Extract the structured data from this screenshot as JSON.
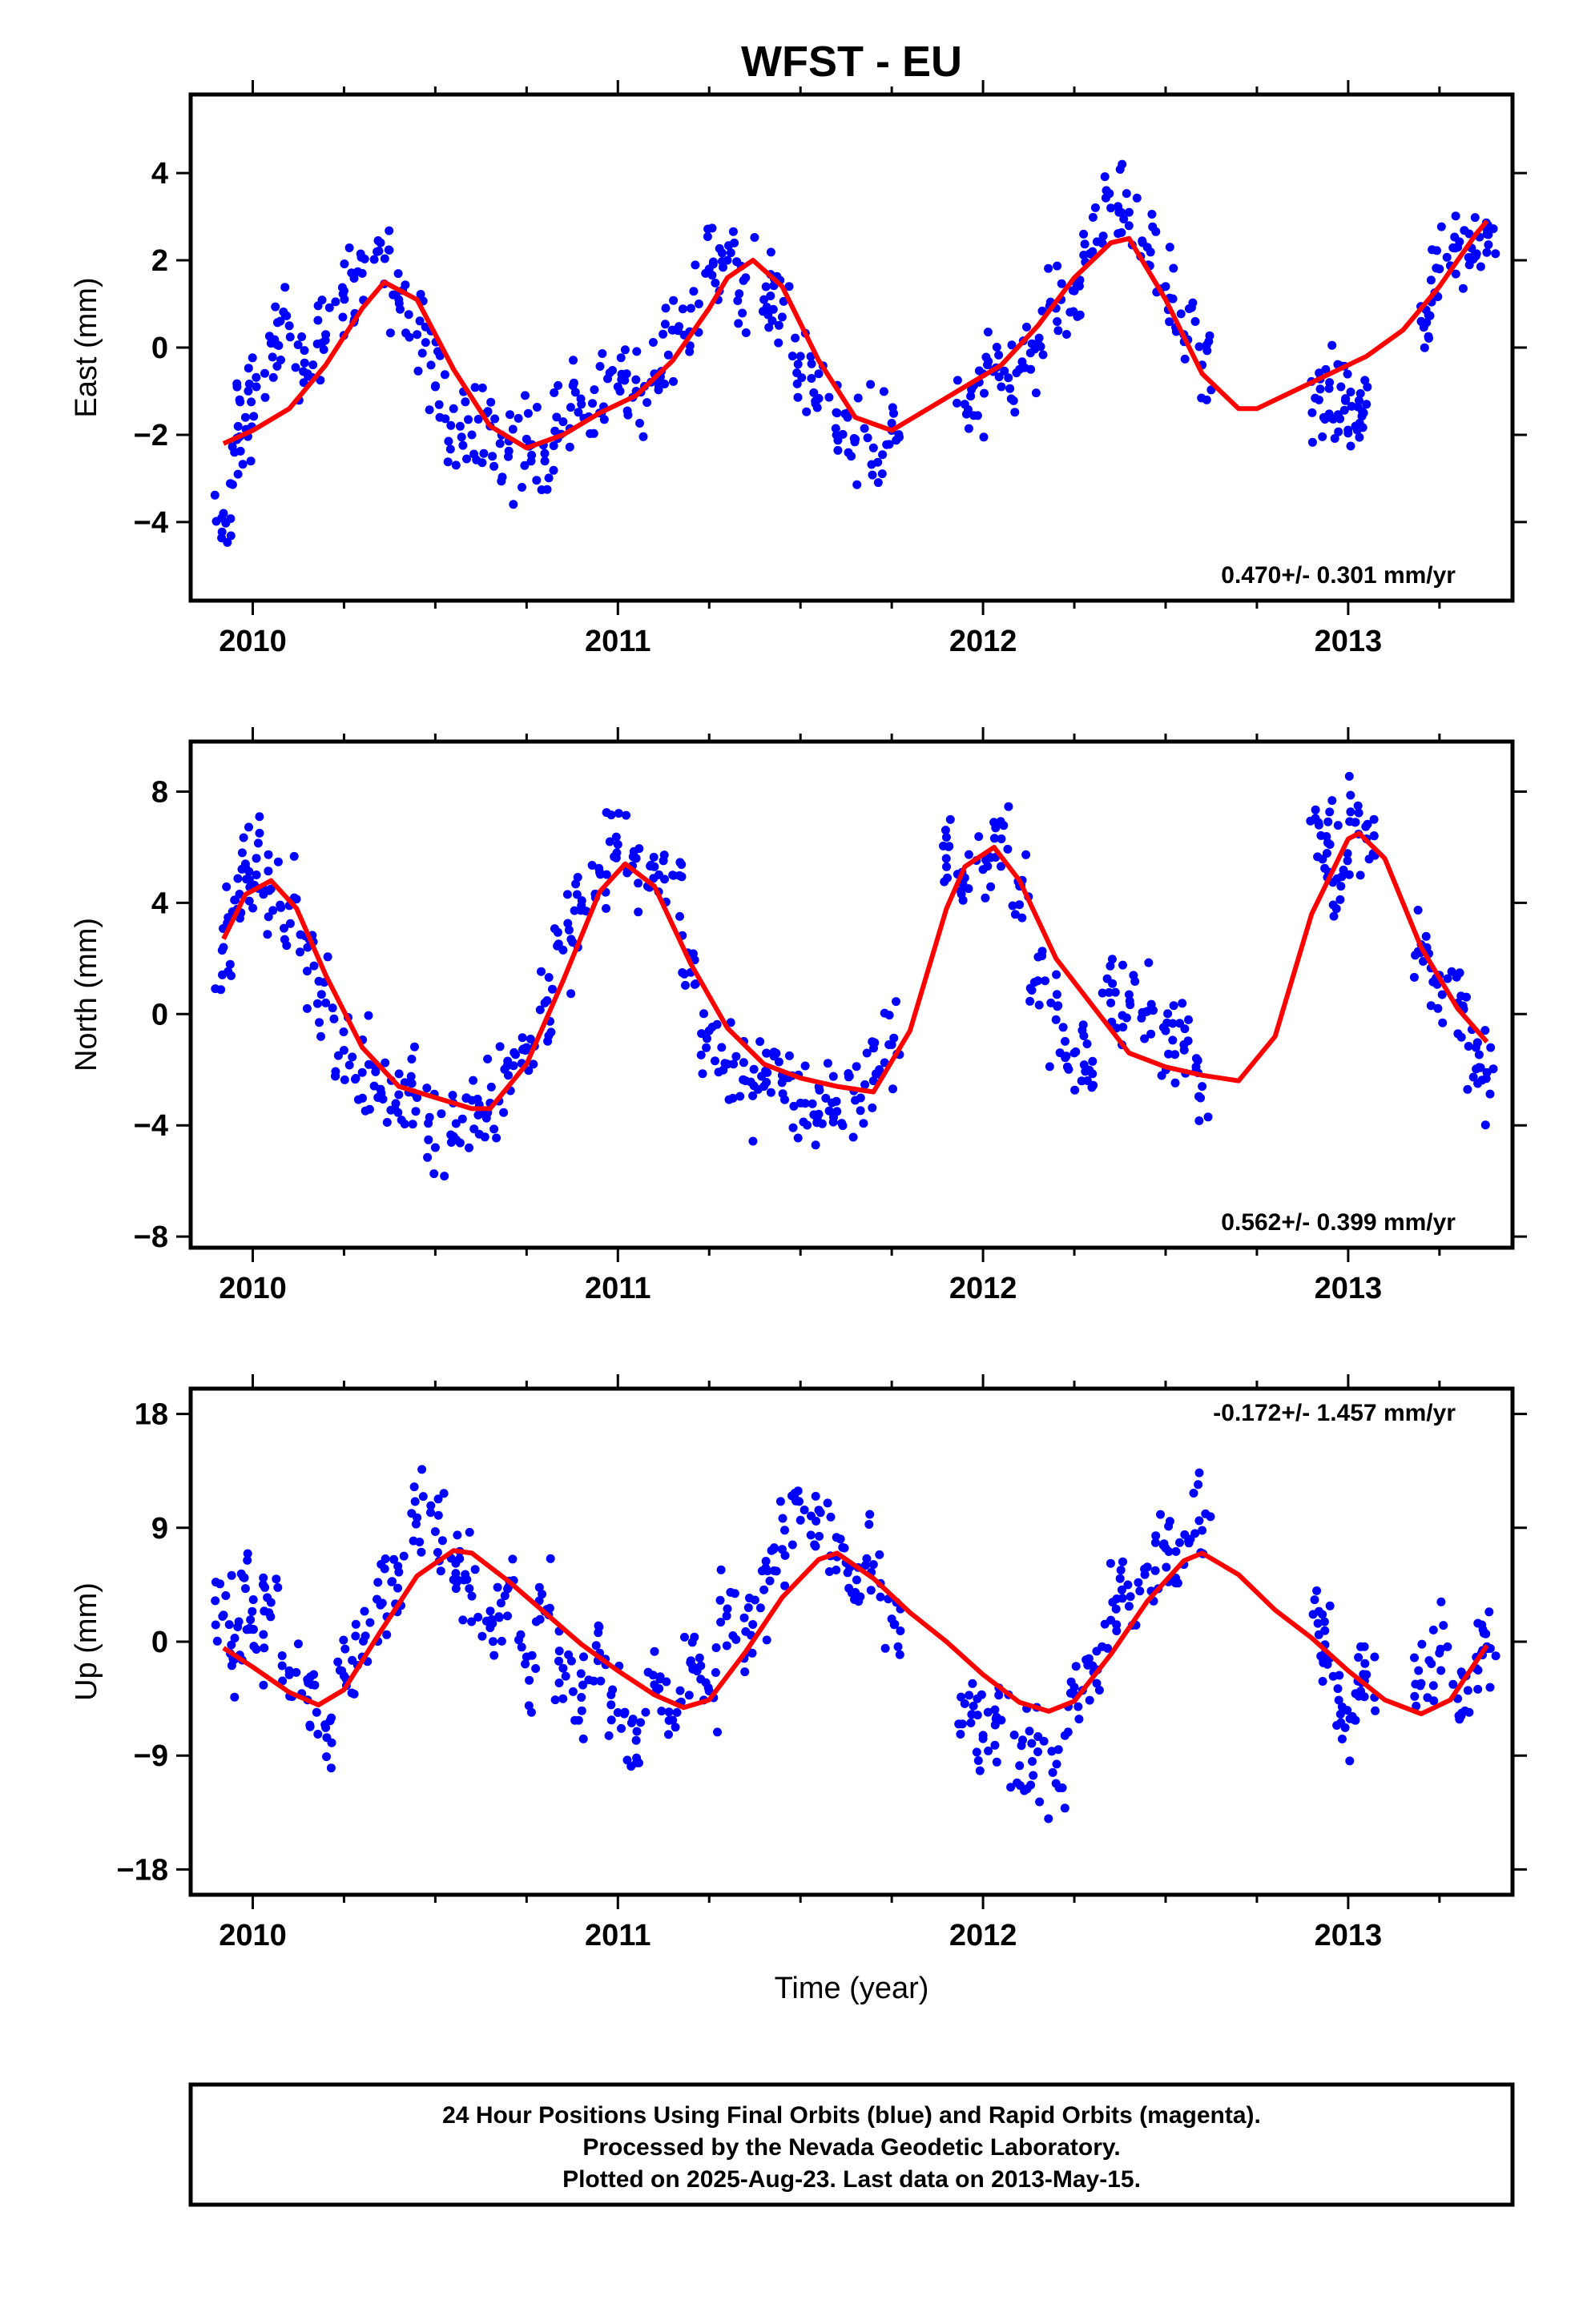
{
  "figure": {
    "title": "WFST - EU",
    "xlabel": "Time (year)",
    "footer": [
      "24 Hour Positions Using Final Orbits (blue) and Rapid Orbits (magenta).",
      "Processed by the Nevada Geodetic Laboratory.",
      "Plotted on 2025-Aug-23. Last data on 2013-May-15."
    ],
    "colors": {
      "points": "#0000ff",
      "model": "#ff0000",
      "frame": "#000000"
    }
  },
  "chart_data": [
    {
      "type": "scatter",
      "ylabel": "East (mm)",
      "rate_label": "0.470+/- 0.301 mm/yr",
      "xlim": [
        2009.83,
        2013.45
      ],
      "ylim": [
        -5.8,
        5.8
      ],
      "xticks": [
        2010,
        2011,
        2012,
        2013
      ],
      "yticks": [
        -4,
        -2,
        0,
        2,
        4
      ],
      "yticklabels": [
        "−4",
        "−2",
        "0",
        "2",
        "4"
      ],
      "series": [
        {
          "kind": "observations",
          "x": [
            2009.92,
            2009.95,
            2009.98,
            2010.01,
            2010.05,
            2010.1,
            2010.15,
            2010.2,
            2010.25,
            2010.3,
            2010.35,
            2010.4,
            2010.45,
            2010.5,
            2010.55,
            2010.6,
            2010.65,
            2010.7,
            2010.75,
            2010.8,
            2010.85,
            2010.9,
            2010.95,
            2011.0,
            2011.05,
            2011.1,
            2011.15,
            2011.2,
            2011.25,
            2011.3,
            2011.35,
            2011.4,
            2011.45,
            2011.5,
            2011.55,
            2011.6,
            2011.65,
            2011.7,
            2011.75,
            2011.95,
            2012.0,
            2012.05,
            2012.1,
            2012.15,
            2012.2,
            2012.25,
            2012.3,
            2012.35,
            2012.4,
            2012.45,
            2012.5,
            2012.55,
            2012.6,
            2012.92,
            2012.95,
            2012.98,
            2013.02,
            2013.05,
            2013.2,
            2013.25,
            2013.3,
            2013.35,
            2013.38
          ],
          "y": [
            -3.8,
            -2.4,
            -1.6,
            -0.9,
            0.1,
            0.5,
            -0.6,
            0.3,
            1.3,
            1.7,
            2.4,
            1.1,
            0.3,
            -0.9,
            -1.4,
            -2.0,
            -1.8,
            -2.5,
            -2.1,
            -2.6,
            -1.7,
            -1.3,
            -1.5,
            -0.9,
            -1.0,
            -0.6,
            0.4,
            0.9,
            1.8,
            2.0,
            1.6,
            1.1,
            0.7,
            -0.2,
            -0.6,
            -1.5,
            -2.1,
            -2.3,
            -1.9,
            -1.3,
            -0.6,
            -0.9,
            -0.5,
            0.1,
            0.9,
            1.3,
            2.2,
            3.2,
            3.1,
            2.3,
            1.4,
            0.3,
            -0.4,
            -1.2,
            -1.6,
            -0.9,
            -1.8,
            -1.3,
            0.6,
            1.8,
            2.3,
            2.1,
            2.6
          ]
        },
        {
          "kind": "model",
          "x": [
            2009.92,
            2010.0,
            2010.1,
            2010.2,
            2010.3,
            2010.36,
            2010.45,
            2010.55,
            2010.65,
            2010.75,
            2010.85,
            2010.95,
            2011.05,
            2011.15,
            2011.25,
            2011.3,
            2011.37,
            2011.45,
            2011.55,
            2011.65,
            2011.75,
            2011.85,
            2011.95,
            2012.05,
            2012.15,
            2012.25,
            2012.35,
            2012.4,
            2012.5,
            2012.6,
            2012.7,
            2012.75,
            2012.85,
            2012.95,
            2013.05,
            2013.15,
            2013.25,
            2013.35,
            2013.38
          ],
          "y": [
            -2.2,
            -1.9,
            -1.4,
            -0.4,
            0.9,
            1.5,
            1.1,
            -0.5,
            -1.8,
            -2.3,
            -2.0,
            -1.5,
            -1.1,
            -0.3,
            0.9,
            1.6,
            2.0,
            1.4,
            -0.3,
            -1.6,
            -1.9,
            -1.4,
            -0.9,
            -0.4,
            0.5,
            1.6,
            2.4,
            2.5,
            1.1,
            -0.6,
            -1.4,
            -1.4,
            -1.0,
            -0.6,
            -0.2,
            0.4,
            1.4,
            2.6,
            2.9
          ]
        }
      ]
    },
    {
      "type": "scatter",
      "ylabel": "North (mm)",
      "rate_label": "0.562+/- 0.399 mm/yr",
      "xlim": [
        2009.83,
        2013.45
      ],
      "ylim": [
        -8.4,
        9.8
      ],
      "xticks": [
        2010,
        2011,
        2012,
        2013
      ],
      "yticks": [
        -8,
        -4,
        0,
        4,
        8
      ],
      "yticklabels": [
        "−8",
        "−4",
        "0",
        "4",
        "8"
      ],
      "series": [
        {
          "kind": "observations",
          "x": [
            2009.92,
            2009.95,
            2009.98,
            2010.01,
            2010.05,
            2010.1,
            2010.15,
            2010.2,
            2010.25,
            2010.3,
            2010.35,
            2010.4,
            2010.45,
            2010.5,
            2010.55,
            2010.6,
            2010.65,
            2010.7,
            2010.75,
            2010.8,
            2010.85,
            2010.9,
            2010.95,
            2011.0,
            2011.05,
            2011.1,
            2011.15,
            2011.2,
            2011.25,
            2011.3,
            2011.35,
            2011.4,
            2011.45,
            2011.5,
            2011.55,
            2011.6,
            2011.65,
            2011.7,
            2011.75,
            2011.9,
            2011.95,
            2012.0,
            2012.05,
            2012.1,
            2012.15,
            2012.2,
            2012.25,
            2012.3,
            2012.35,
            2012.4,
            2012.45,
            2012.5,
            2012.55,
            2012.6,
            2012.92,
            2012.95,
            2012.98,
            2013.02,
            2013.05,
            2013.2,
            2013.25,
            2013.3,
            2013.35,
            2013.38
          ],
          "y": [
            2.4,
            4.1,
            5.4,
            5.6,
            4.5,
            3.9,
            2.4,
            0.4,
            -1.3,
            -2.1,
            -2.7,
            -2.9,
            -3.0,
            -4.8,
            -4.4,
            -3.1,
            -3.2,
            -2.2,
            -1.2,
            0.4,
            2.3,
            3.9,
            5.1,
            6.1,
            5.6,
            5.3,
            5.0,
            1.5,
            -0.6,
            -1.8,
            -2.4,
            -2.6,
            -2.2,
            -3.2,
            -3.6,
            -3.5,
            -3.1,
            -2.4,
            -1.1,
            5.3,
            4.9,
            5.2,
            6.3,
            4.6,
            1.2,
            -0.2,
            -1.4,
            -1.7,
            0.4,
            0.7,
            0.1,
            -0.6,
            -1.1,
            -2.6,
            6.8,
            6.1,
            4.6,
            6.9,
            6.3,
            2.5,
            1.4,
            0.4,
            -1.2,
            -2.1
          ]
        },
        {
          "kind": "model",
          "x": [
            2009.92,
            2009.98,
            2010.05,
            2010.12,
            2010.2,
            2010.3,
            2010.4,
            2010.5,
            2010.6,
            2010.65,
            2010.75,
            2010.85,
            2010.95,
            2011.02,
            2011.1,
            2011.2,
            2011.3,
            2011.4,
            2011.5,
            2011.6,
            2011.7,
            2011.8,
            2011.9,
            2011.95,
            2012.03,
            2012.1,
            2012.2,
            2012.3,
            2012.4,
            2012.5,
            2012.6,
            2012.7,
            2012.8,
            2012.9,
            2013.0,
            2013.03,
            2013.1,
            2013.2,
            2013.3,
            2013.38
          ],
          "y": [
            2.7,
            4.3,
            4.8,
            3.8,
            1.4,
            -1.2,
            -2.6,
            -3.0,
            -3.4,
            -3.4,
            -1.8,
            1.2,
            4.4,
            5.4,
            4.6,
            1.8,
            -0.5,
            -1.8,
            -2.3,
            -2.6,
            -2.8,
            -0.6,
            3.8,
            5.3,
            6.0,
            4.8,
            2.0,
            0.3,
            -1.4,
            -1.9,
            -2.2,
            -2.4,
            -0.8,
            3.6,
            6.3,
            6.5,
            5.6,
            2.4,
            0.2,
            -1.0
          ]
        }
      ]
    },
    {
      "type": "scatter",
      "ylabel": "Up (mm)",
      "rate_label": "-0.172+/- 1.457 mm/yr",
      "xlim": [
        2009.83,
        2013.45
      ],
      "ylim": [
        -20,
        20
      ],
      "xticks": [
        2010,
        2011,
        2012,
        2013
      ],
      "yticks": [
        -18,
        -9,
        0,
        9,
        18
      ],
      "yticklabels": [
        "−18",
        "−9",
        "0",
        "9",
        "18"
      ],
      "series": [
        {
          "kind": "observations",
          "x": [
            2009.92,
            2009.95,
            2009.98,
            2010.01,
            2010.05,
            2010.1,
            2010.15,
            2010.2,
            2010.25,
            2010.3,
            2010.35,
            2010.4,
            2010.45,
            2010.5,
            2010.55,
            2010.6,
            2010.65,
            2010.7,
            2010.75,
            2010.8,
            2010.85,
            2010.9,
            2010.95,
            2011.0,
            2011.05,
            2011.1,
            2011.15,
            2011.2,
            2011.25,
            2011.3,
            2011.35,
            2011.4,
            2011.45,
            2011.5,
            2011.55,
            2011.6,
            2011.65,
            2011.7,
            2011.75,
            2011.95,
            2012.0,
            2012.05,
            2012.1,
            2012.15,
            2012.2,
            2012.25,
            2012.3,
            2012.35,
            2012.4,
            2012.45,
            2012.5,
            2012.55,
            2012.6,
            2012.92,
            2012.95,
            2012.98,
            2013.02,
            2013.05,
            2013.2,
            2013.25,
            2013.3,
            2013.35,
            2013.38
          ],
          "y": [
            2.1,
            -1.4,
            4.2,
            -0.6,
            3.1,
            -2.3,
            -4.6,
            -6.8,
            -2.7,
            -1.2,
            2.9,
            5.5,
            9.8,
            8.7,
            4.9,
            3.6,
            1.1,
            4.3,
            -1.2,
            2.4,
            -2.1,
            -4.4,
            -0.9,
            -5.6,
            -7.8,
            -3.4,
            -6.2,
            -1.5,
            -3.9,
            2.6,
            0.8,
            4.1,
            7.3,
            9.6,
            10.4,
            6.7,
            3.9,
            6.1,
            1.8,
            -4.9,
            -7.4,
            -6.2,
            -9.8,
            -8.7,
            -11.2,
            -3.6,
            -1.9,
            1.7,
            2.8,
            5.9,
            7.4,
            6.1,
            8.8,
            2.4,
            -1.3,
            -6.4,
            -4.1,
            -2.6,
            -3.3,
            -0.9,
            -4.5,
            -2.1,
            -0.4
          ]
        },
        {
          "kind": "model",
          "x": [
            2009.92,
            2010.0,
            2010.1,
            2010.18,
            2010.25,
            2010.35,
            2010.45,
            2010.55,
            2010.6,
            2010.7,
            2010.8,
            2010.9,
            2011.0,
            2011.1,
            2011.18,
            2011.25,
            2011.35,
            2011.45,
            2011.55,
            2011.6,
            2011.7,
            2011.8,
            2011.9,
            2012.0,
            2012.1,
            2012.18,
            2012.25,
            2012.35,
            2012.45,
            2012.55,
            2012.6,
            2012.7,
            2012.8,
            2012.9,
            2013.0,
            2013.1,
            2013.2,
            2013.28,
            2013.38
          ],
          "y": [
            -0.5,
            -2.0,
            -4.0,
            -5.0,
            -3.8,
            0.8,
            5.2,
            7.2,
            7.0,
            4.8,
            2.3,
            -0.2,
            -2.3,
            -4.2,
            -5.2,
            -4.6,
            -0.8,
            3.5,
            6.5,
            7.0,
            5.0,
            2.3,
            0.0,
            -2.6,
            -4.8,
            -5.5,
            -4.7,
            -1.0,
            3.2,
            6.4,
            7.0,
            5.3,
            2.5,
            0.3,
            -2.3,
            -4.6,
            -5.7,
            -4.6,
            -0.3
          ]
        }
      ]
    }
  ]
}
